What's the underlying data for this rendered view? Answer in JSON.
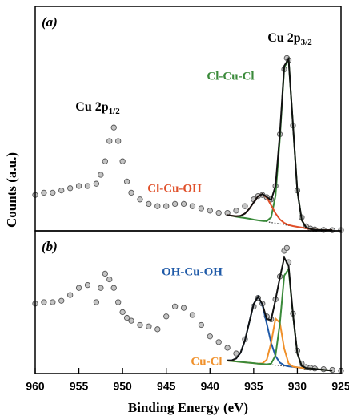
{
  "chart_data": {
    "type": "line",
    "xlabel": "Binding Energy (eV)",
    "ylabel": "Counts (a.u.)",
    "xlim": [
      960,
      925
    ],
    "xticks": [
      960,
      955,
      950,
      945,
      940,
      935,
      930,
      925
    ],
    "panels": [
      {
        "label": "(a)",
        "ylim": [
          0,
          100
        ],
        "annotations": [
          {
            "text": "Cu 2p",
            "sub": "3/2"
          },
          {
            "text": "Cu 2p",
            "sub": "1/2"
          }
        ],
        "series": [
          {
            "style": "markers",
            "color": "#555555",
            "x": [
              960,
              959,
              958,
              957,
              956,
              955,
              954,
              953,
              952.5,
              952,
              951.5,
              951,
              950.5,
              950,
              949.5,
              949,
              948,
              947,
              946,
              945,
              944,
              943,
              942,
              941,
              940,
              939,
              938,
              937,
              936,
              935,
              934.5,
              934,
              933.5,
              933,
              932.5,
              932,
              931.5,
              931.2,
              931,
              930.5,
              930,
              929.5,
              929,
              928.5,
              928,
              927,
              926,
              925
            ],
            "values": [
              16,
              17,
              17,
              18,
              19,
              20,
              20,
              21,
              25,
              31,
              40,
              46,
              40,
              31,
              22,
              17,
              14,
              12,
              11,
              11,
              12,
              12,
              11,
              10,
              9,
              8,
              8,
              9,
              11,
              14,
              15.5,
              16,
              15,
              14,
              20,
              43,
              72,
              77,
              76,
              47,
              18,
              6,
              2,
              1,
              0.6,
              0.4,
              0.3,
              0.3
            ]
          },
          {
            "style": "dotted",
            "color": "#333333",
            "x": [
              938,
              937.5,
              937,
              936.5,
              936,
              935.5,
              935,
              934.5,
              934,
              933.5,
              933,
              932.5,
              932,
              931.5,
              931,
              930.5,
              930,
              929.5,
              929,
              928.5,
              928,
              927.5,
              927,
              926.5,
              926
            ],
            "values": [
              7,
              6.7,
              6.3,
              6,
              5.7,
              5.4,
              5,
              4.7,
              4.4,
              4.1,
              3.7,
              3.4,
              3.1,
              2.8,
              2.4,
              2.1,
              1.8,
              1.5,
              1.1,
              0.8,
              0.5,
              0.4,
              0.3,
              0.3,
              0.3
            ]
          },
          {
            "style": "line",
            "name": "Cl-Cu-Cl",
            "color": "#3a8a3a",
            "x": [
              938,
              937.5,
              937,
              936.5,
              936,
              935.5,
              935,
              934.5,
              934,
              933.5,
              933,
              932.5,
              932,
              931.5,
              931,
              930.5,
              930,
              929.5,
              929,
              928.5,
              928,
              927.5,
              927,
              926.5,
              926
            ],
            "values": [
              7,
              6.7,
              6.3,
              6,
              5.7,
              5.4,
              5,
              4.7,
              4.4,
              4.35,
              6,
              15.6,
              41.1,
              72.8,
              76.4,
              47.1,
              17.8,
              4.8,
              1.5,
              0.8,
              0.5,
              0.4,
              0.3,
              0.3,
              0.3
            ]
          },
          {
            "style": "line",
            "name": "Cl-Cu-OH",
            "color": "#e0502a",
            "x": [
              938,
              937.5,
              937,
              936.5,
              936,
              935.5,
              935,
              934.5,
              934,
              933.5,
              933,
              932.5,
              932,
              931.5,
              931,
              930.5,
              930,
              929.5,
              929,
              928.5,
              928,
              927.5,
              927,
              926.5,
              926
            ],
            "values": [
              7,
              6.75,
              6.5,
              6.7,
              7.7,
              9.8,
              12.7,
              15.4,
              16.4,
              14.8,
              11.4,
              7.8,
              5.1,
              3.5,
              2.6,
              2.15,
              1.8,
              1.5,
              1.1,
              0.8,
              0.5,
              0.4,
              0.3,
              0.3,
              0.3
            ]
          },
          {
            "style": "line",
            "color": "#111111",
            "x": [
              938,
              937.5,
              937,
              936.5,
              936,
              935.5,
              935,
              934.5,
              934,
              933.5,
              933,
              932.5,
              932,
              931.5,
              931,
              930.5,
              930,
              929.5,
              929,
              928.5,
              928,
              927.5,
              927,
              926.5,
              926
            ],
            "values": [
              7,
              6.75,
              6.5,
              6.7,
              7.7,
              9.8,
              12.7,
              15.4,
              16.4,
              15.05,
              13.7,
              20,
              43.1,
              73.5,
              76.6,
              47.15,
              17.8,
              4.8,
              1.5,
              0.8,
              0.5,
              0.4,
              0.3,
              0.3,
              0.3
            ]
          }
        ]
      },
      {
        "label": "(b)",
        "ylim": [
          0,
          100
        ],
        "annotations": [],
        "series": [
          {
            "style": "markers",
            "color": "#555555",
            "x": [
              960,
              959,
              958,
              957,
              956,
              955,
              954,
              953,
              952.5,
              952,
              951.5,
              951,
              950.5,
              950,
              949.5,
              949,
              948,
              947,
              946,
              945,
              944,
              943,
              942,
              941,
              940,
              939,
              938,
              937,
              936,
              935,
              934.5,
              934,
              933.5,
              933,
              932.5,
              932,
              931.5,
              931.2,
              931,
              930.5,
              930,
              929.5,
              929,
              928.5,
              928,
              927,
              926,
              925
            ],
            "values": [
              49,
              50,
              50,
              51,
              55,
              60,
              62,
              50,
              60,
              70,
              66,
              60,
              50,
              43,
              39,
              37,
              34,
              33,
              31,
              40,
              47,
              46,
              41,
              34,
              26,
              22,
              18,
              14,
              24,
              47,
              53,
              49,
              40,
              38,
              52,
              68,
              86,
              88,
              78,
              42,
              16,
              7,
              4.5,
              4,
              3.5,
              3,
              2.5,
              2
            ]
          },
          {
            "style": "dotted",
            "color": "#333333",
            "x": [
              938,
              937.5,
              937,
              936.5,
              936,
              935.5,
              935,
              934.5,
              934,
              933.5,
              933,
              932.5,
              932,
              931.5,
              931,
              930.5,
              930,
              929.5,
              929,
              928.5,
              928,
              927.5,
              927,
              926.5,
              926
            ],
            "values": [
              9,
              8.7,
              8.4,
              8.1,
              7.8,
              7.5,
              7.2,
              6.9,
              6.7,
              6.4,
              6.1,
              5.8,
              5.5,
              5.2,
              4.9,
              4.6,
              4.3,
              4,
              3.7,
              3.5,
              3.2,
              2.9,
              2.6,
              2.3,
              2
            ]
          },
          {
            "style": "line",
            "name": "OH-Cu-OH",
            "color": "#1f5aa8",
            "x": [
              938,
              937.5,
              937,
              936.5,
              936,
              935.5,
              935,
              934.5,
              934,
              933.5,
              933,
              932.5,
              932,
              931.5,
              931,
              930.5,
              930,
              929.5,
              929,
              928.5,
              928,
              927.5,
              927,
              926.5,
              926
            ],
            "values": [
              9.1,
              9.2,
              10.5,
              14.5,
              23.1,
              36,
              48.7,
              53.9,
              48.2,
              34.9,
              21.4,
              12.2,
              7.6,
              5.7,
              5,
              4.6,
              4.3,
              4,
              3.7,
              3.5,
              3.2,
              2.9,
              2.6,
              2.3,
              2
            ]
          },
          {
            "style": "line",
            "name": "Cu-Cl",
            "color": "#f0902a",
            "x": [
              938,
              937.5,
              937,
              936.5,
              936,
              935.5,
              935,
              934.5,
              934,
              933.5,
              933,
              932.5,
              932,
              931.5,
              931,
              930.5,
              930,
              929.5,
              929,
              928.5,
              928,
              927.5,
              927,
              926.5,
              926
            ],
            "values": [
              9,
              8.7,
              8.4,
              8.1,
              7.8,
              7.5,
              7.2,
              6.9,
              7.1,
              9.6,
              21.5,
              38.5,
              35.6,
              17.3,
              7,
              4.8,
              4.3,
              4,
              3.7,
              3.5,
              3.2,
              2.9,
              2.6,
              2.3,
              2
            ]
          },
          {
            "style": "line",
            "color": "#3a8a3a",
            "x": [
              938,
              937.5,
              937,
              936.5,
              936,
              935.5,
              935,
              934.5,
              934,
              933.5,
              933,
              932.5,
              932,
              931.5,
              931,
              930.5,
              930,
              929.5,
              929,
              928.5,
              928,
              927.5,
              927,
              926.5,
              926
            ],
            "values": [
              9,
              8.7,
              8.4,
              8.1,
              7.8,
              7.5,
              7.2,
              6.9,
              6.7,
              6.4,
              6.9,
              12.6,
              35,
              68.6,
              73.3,
              41.3,
              14,
              5.3,
              3.8,
              3.5,
              3.2,
              2.9,
              2.6,
              2.3,
              2
            ]
          },
          {
            "style": "line",
            "color": "#111111",
            "x": [
              938,
              937.5,
              937,
              936.5,
              936,
              935.5,
              935,
              934.5,
              934,
              933.5,
              933,
              932.5,
              932,
              931.5,
              931,
              930.5,
              930,
              929.5,
              929,
              928.5,
              928,
              927.5,
              927,
              926.5,
              926
            ],
            "values": [
              9.1,
              9.2,
              10.5,
              14.5,
              23.1,
              36,
              48.7,
              53.9,
              48.6,
              38.1,
              37.6,
              51.7,
              67.2,
              81.2,
              75.5,
              41.5,
              14,
              5.3,
              3.8,
              3.5,
              3.2,
              2.9,
              2.6,
              2.3,
              2
            ]
          }
        ]
      }
    ]
  }
}
